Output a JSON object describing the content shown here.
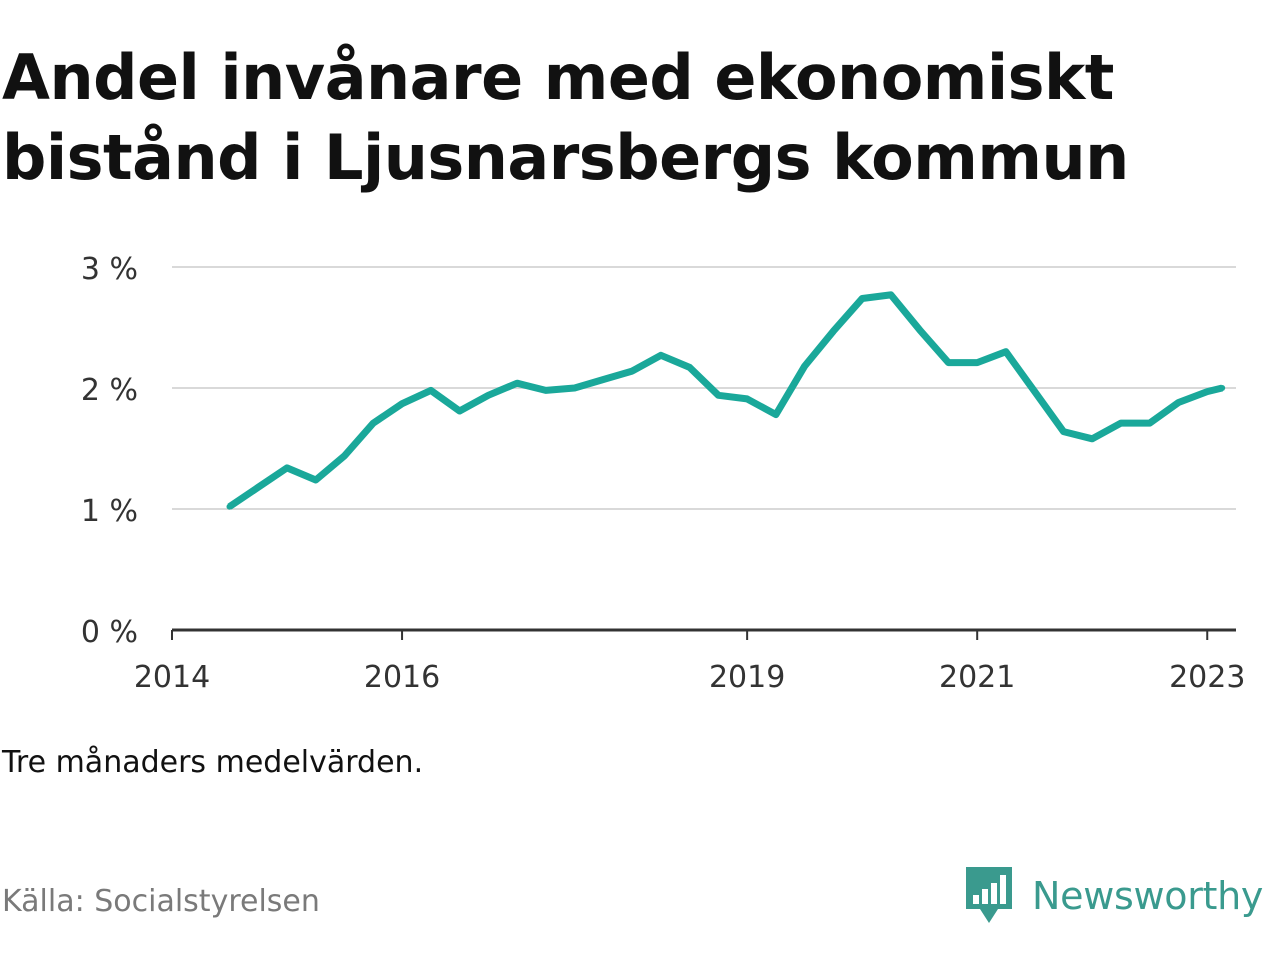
{
  "title": "Andel invånare med ekonomiskt bistånd i Ljusnarsbergs kommun",
  "note": "Tre månaders medelvärden.",
  "source": "Källa: Socialstyrelsen",
  "brand": {
    "name": "Newsworthy",
    "icon": "newsworthy-logo-icon",
    "color": "#3a9a8e"
  },
  "colors": {
    "line": "#1aa89a",
    "grid": "#d9d9d9",
    "axis": "#333333"
  },
  "chart_data": {
    "type": "line",
    "title": "Andel invånare med ekonomiskt bistånd i Ljusnarsbergs kommun",
    "xlabel": "",
    "ylabel": "",
    "ylim": [
      0,
      3
    ],
    "yticks": [
      0,
      1,
      2,
      3
    ],
    "ytick_labels": [
      "0 %",
      "1 %",
      "2 %",
      "3 %"
    ],
    "xlim": [
      2014.0,
      2023.25
    ],
    "xticks": [
      2014,
      2016,
      2019,
      2021,
      2023
    ],
    "xtick_labels": [
      "2014",
      "2016",
      "2019",
      "2021",
      "2023"
    ],
    "grid": true,
    "legend": "none",
    "series": [
      {
        "x": [
          2014.5,
          2014.75,
          2015.0,
          2015.25,
          2015.5,
          2015.75,
          2016.0,
          2016.25,
          2016.5,
          2016.75,
          2017.0,
          2017.25,
          2017.5,
          2017.75,
          2018.0,
          2018.25,
          2018.5,
          2018.75,
          2019.0,
          2019.25,
          2019.5,
          2019.75,
          2020.0,
          2020.25,
          2020.5,
          2020.75,
          2021.0,
          2021.25,
          2021.5,
          2021.75,
          2022.0,
          2022.25,
          2022.5,
          2022.75,
          2023.0,
          2023.13
        ],
        "values": [
          1.02,
          1.18,
          1.34,
          1.24,
          1.44,
          1.71,
          1.87,
          1.98,
          1.81,
          1.94,
          2.04,
          1.98,
          2.0,
          2.07,
          2.14,
          2.27,
          2.17,
          1.94,
          1.91,
          1.78,
          2.18,
          2.47,
          2.74,
          2.77,
          2.48,
          2.21,
          2.21,
          2.3,
          1.97,
          1.64,
          1.58,
          1.71,
          1.71,
          1.88,
          1.97,
          2.0
        ]
      }
    ]
  }
}
